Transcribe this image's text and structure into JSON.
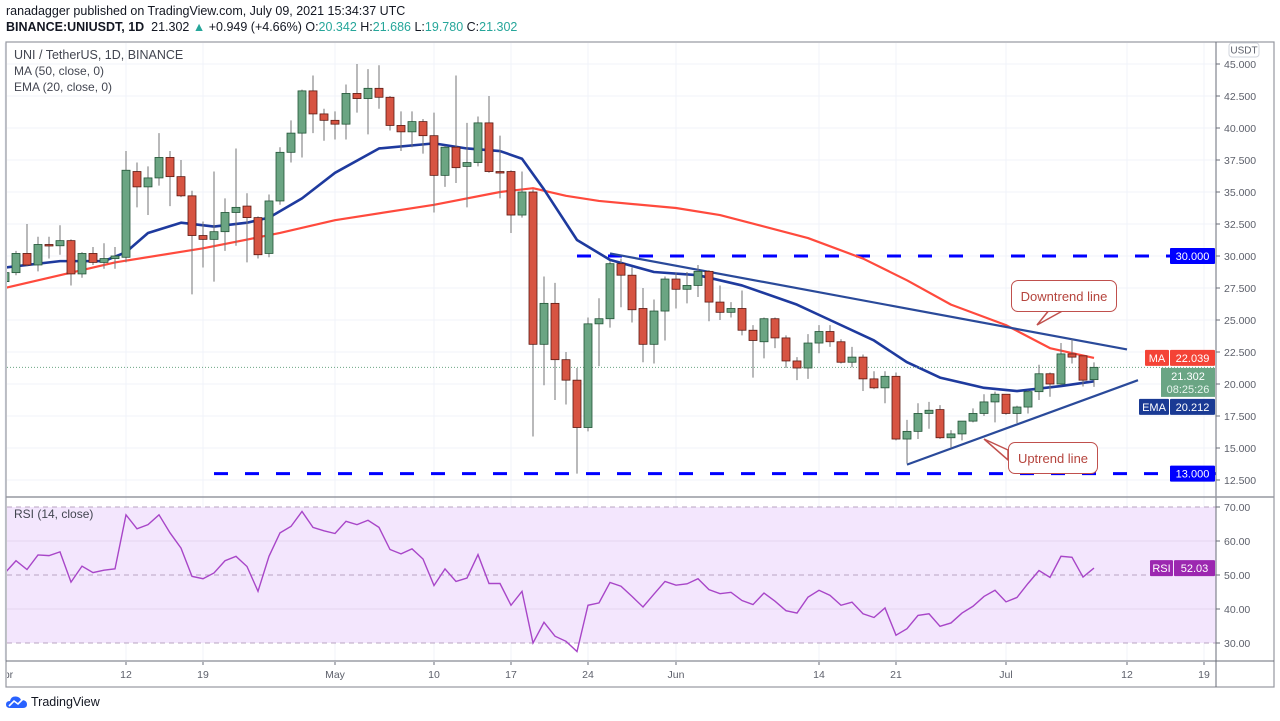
{
  "header": {
    "published_line": "ranadagger published on TradingView.com, July 09, 2021 15:34:37 UTC",
    "symbol": "BINANCE:UNIUSDT, 1D",
    "last": "21.302",
    "change": "+0.949 (+4.66%)",
    "o_label": "O:",
    "o": "20.342",
    "h_label": "H:",
    "h": "21.686",
    "l_label": "L:",
    "l": "19.780",
    "c_label": "C:",
    "c": "21.302"
  },
  "legend": {
    "title": "UNI / TetherUS, 1D, BINANCE",
    "ma": "MA (50, close, 0)",
    "ema": "EMA (20, close, 0)",
    "rsi": "RSI (14, close)"
  },
  "colors": {
    "up": "#6ba583",
    "up_border": "#225437",
    "down": "#d75442",
    "down_border": "#5b1a13",
    "wick": "#737375",
    "ma": "#ff4a3d",
    "ema": "#1e3a9e",
    "trendline": "#2a4a9a",
    "level": "#0000ff",
    "rsi": "#a846c8",
    "rsi_band": "#f3e6fd"
  },
  "price_axis": {
    "currency": "USDT",
    "ticks": [
      "45.000",
      "42.500",
      "40.000",
      "37.500",
      "35.000",
      "32.500",
      "30.000",
      "27.500",
      "25.000",
      "22.500",
      "20.000",
      "17.500",
      "15.000",
      "12.500"
    ],
    "labels": {
      "level_high": "30.000",
      "level_low": "13.000",
      "ma_tag": "MA",
      "ma_value": "22.039",
      "last_value": "21.302",
      "countdown": "08:25:26",
      "ema_tag": "EMA",
      "ema_value": "20.212"
    }
  },
  "rsi_axis": {
    "ticks": [
      "70.00",
      "60.00",
      "50.00",
      "40.00",
      "30.00"
    ],
    "tag": "RSI",
    "value": "52.03"
  },
  "time_axis": {
    "ticks": [
      {
        "label": "Apr",
        "date": "2021-04-01"
      },
      {
        "label": "12",
        "date": "2021-04-12"
      },
      {
        "label": "19",
        "date": "2021-04-19"
      },
      {
        "label": "May",
        "date": "2021-05-01"
      },
      {
        "label": "10",
        "date": "2021-05-10"
      },
      {
        "label": "17",
        "date": "2021-05-17"
      },
      {
        "label": "24",
        "date": "2021-05-24"
      },
      {
        "label": "Jun",
        "date": "2021-06-01"
      },
      {
        "label": "14",
        "date": "2021-06-14"
      },
      {
        "label": "21",
        "date": "2021-06-21"
      },
      {
        "label": "Jul",
        "date": "2021-07-01"
      },
      {
        "label": "12",
        "date": "2021-07-12"
      },
      {
        "label": "19",
        "date": "2021-07-19"
      }
    ]
  },
  "annotations": {
    "downtrend": "Downtrend line",
    "uptrend": "Uptrend line"
  },
  "brand": "TradingView",
  "chart_data": {
    "type": "candlestick",
    "symbol": "UNI / TetherUS",
    "interval": "1D",
    "ylim": [
      12.5,
      45
    ],
    "rsi_ylim": [
      25,
      72
    ],
    "candle_fields": [
      "date",
      "open",
      "high",
      "low",
      "close"
    ],
    "candles": [
      [
        "2021-04-01",
        28.0,
        28.9,
        27.8,
        28.7
      ],
      [
        "2021-04-02",
        28.7,
        30.4,
        28.5,
        30.2
      ],
      [
        "2021-04-03",
        30.2,
        32.5,
        29.2,
        29.3
      ],
      [
        "2021-04-04",
        29.3,
        31.5,
        28.8,
        30.9
      ],
      [
        "2021-04-05",
        30.9,
        31.5,
        29.8,
        30.8
      ],
      [
        "2021-04-06",
        30.8,
        32.4,
        30.1,
        31.2
      ],
      [
        "2021-04-07",
        31.2,
        31.3,
        27.7,
        28.6
      ],
      [
        "2021-04-08",
        28.6,
        30.3,
        28.3,
        30.2
      ],
      [
        "2021-04-09",
        30.2,
        30.7,
        29.3,
        29.5
      ],
      [
        "2021-04-10",
        29.5,
        31.0,
        29.0,
        29.8
      ],
      [
        "2021-04-11",
        29.8,
        30.7,
        29.0,
        30.0
      ],
      [
        "2021-04-12",
        29.9,
        38.2,
        29.5,
        36.7
      ],
      [
        "2021-04-13",
        36.6,
        37.3,
        33.8,
        35.4
      ],
      [
        "2021-04-14",
        35.4,
        37.0,
        33.2,
        36.1
      ],
      [
        "2021-04-15",
        36.1,
        39.6,
        35.5,
        37.7
      ],
      [
        "2021-04-16",
        37.7,
        38.2,
        33.9,
        36.2
      ],
      [
        "2021-04-17",
        36.2,
        37.5,
        34.6,
        34.7
      ],
      [
        "2021-04-18",
        34.7,
        35.1,
        27.0,
        31.6
      ],
      [
        "2021-04-19",
        31.6,
        32.7,
        29.1,
        31.3
      ],
      [
        "2021-04-20",
        31.3,
        36.6,
        28.0,
        31.9
      ],
      [
        "2021-04-21",
        31.9,
        34.5,
        30.4,
        33.4
      ],
      [
        "2021-04-22",
        33.4,
        38.4,
        30.8,
        33.8
      ],
      [
        "2021-04-23",
        33.9,
        34.9,
        29.5,
        33.0
      ],
      [
        "2021-04-24",
        33.0,
        33.1,
        29.8,
        30.1
      ],
      [
        "2021-04-25",
        30.2,
        34.8,
        29.9,
        34.3
      ],
      [
        "2021-04-26",
        34.3,
        38.5,
        34.0,
        38.1
      ],
      [
        "2021-04-27",
        38.1,
        40.6,
        37.3,
        39.6
      ],
      [
        "2021-04-28",
        39.6,
        43.0,
        37.7,
        42.9
      ],
      [
        "2021-04-29",
        42.9,
        44.1,
        39.6,
        41.1
      ],
      [
        "2021-04-30",
        41.1,
        41.5,
        39.0,
        40.6
      ],
      [
        "2021-05-01",
        40.6,
        41.3,
        39.1,
        40.3
      ],
      [
        "2021-05-02",
        40.3,
        43.4,
        39.1,
        42.7
      ],
      [
        "2021-05-03",
        42.7,
        45.0,
        41.2,
        42.3
      ],
      [
        "2021-05-04",
        42.3,
        44.6,
        39.5,
        43.1
      ],
      [
        "2021-05-05",
        43.1,
        44.9,
        41.5,
        42.4
      ],
      [
        "2021-05-06",
        42.4,
        42.5,
        39.8,
        40.2
      ],
      [
        "2021-05-07",
        40.2,
        41.3,
        38.2,
        39.7
      ],
      [
        "2021-05-08",
        39.7,
        41.3,
        38.5,
        40.5
      ],
      [
        "2021-05-09",
        40.5,
        40.7,
        38.0,
        39.4
      ],
      [
        "2021-05-10",
        39.4,
        41.2,
        33.4,
        36.3
      ],
      [
        "2021-05-11",
        36.3,
        38.6,
        35.4,
        38.5
      ],
      [
        "2021-05-12",
        38.5,
        44.1,
        35.7,
        36.9
      ],
      [
        "2021-05-13",
        37.0,
        40.4,
        33.8,
        37.3
      ],
      [
        "2021-05-14",
        37.3,
        40.9,
        37.0,
        40.4
      ],
      [
        "2021-05-15",
        40.4,
        42.5,
        36.5,
        36.6
      ],
      [
        "2021-05-16",
        36.6,
        39.4,
        34.5,
        36.5
      ],
      [
        "2021-05-17",
        36.6,
        36.7,
        31.8,
        33.2
      ],
      [
        "2021-05-18",
        33.2,
        36.6,
        33.0,
        35.0
      ],
      [
        "2021-05-19",
        35.0,
        35.2,
        15.9,
        23.1
      ],
      [
        "2021-05-20",
        23.1,
        28.4,
        19.9,
        26.3
      ],
      [
        "2021-05-21",
        26.3,
        27.9,
        18.75,
        21.9
      ],
      [
        "2021-05-22",
        21.9,
        22.5,
        18.4,
        20.3
      ],
      [
        "2021-05-23",
        20.3,
        21.25,
        13.0,
        16.6
      ],
      [
        "2021-05-24",
        16.6,
        25.2,
        16.3,
        24.7
      ],
      [
        "2021-05-25",
        24.7,
        26.7,
        21.4,
        25.1
      ],
      [
        "2021-05-26",
        25.1,
        29.6,
        24.4,
        29.4
      ],
      [
        "2021-05-27",
        29.4,
        29.8,
        26.0,
        28.5
      ],
      [
        "2021-05-28",
        28.5,
        29.1,
        24.8,
        25.8
      ],
      [
        "2021-05-29",
        25.9,
        27.5,
        21.7,
        23.1
      ],
      [
        "2021-05-30",
        23.1,
        26.6,
        21.6,
        25.7
      ],
      [
        "2021-05-31",
        25.7,
        28.4,
        23.4,
        28.2
      ],
      [
        "2021-06-01",
        28.2,
        28.7,
        25.9,
        27.4
      ],
      [
        "2021-06-02",
        27.4,
        28.75,
        26.3,
        27.7
      ],
      [
        "2021-06-03",
        27.7,
        29.3,
        26.8,
        28.8
      ],
      [
        "2021-06-04",
        28.8,
        28.9,
        24.9,
        26.4
      ],
      [
        "2021-06-05",
        26.4,
        27.7,
        25.0,
        25.6
      ],
      [
        "2021-06-06",
        25.6,
        26.4,
        25.2,
        25.9
      ],
      [
        "2021-06-07",
        25.9,
        27.3,
        23.8,
        24.2
      ],
      [
        "2021-06-08",
        24.2,
        24.6,
        20.5,
        23.4
      ],
      [
        "2021-06-09",
        23.3,
        25.2,
        22.0,
        25.1
      ],
      [
        "2021-06-10",
        25.1,
        25.2,
        22.8,
        23.6
      ],
      [
        "2021-06-11",
        23.6,
        23.8,
        21.25,
        21.8
      ],
      [
        "2021-06-12",
        21.8,
        22.1,
        20.3,
        21.25
      ],
      [
        "2021-06-13",
        21.25,
        23.9,
        20.4,
        23.2
      ],
      [
        "2021-06-14",
        23.2,
        24.6,
        22.4,
        24.1
      ],
      [
        "2021-06-15",
        24.1,
        24.6,
        22.9,
        23.3
      ],
      [
        "2021-06-16",
        23.3,
        23.5,
        21.6,
        21.7
      ],
      [
        "2021-06-17",
        21.7,
        22.9,
        21.3,
        22.1
      ],
      [
        "2021-06-18",
        22.1,
        22.3,
        19.45,
        20.4
      ],
      [
        "2021-06-19",
        20.4,
        21.0,
        19.6,
        19.7
      ],
      [
        "2021-06-20",
        19.7,
        21.0,
        18.5,
        20.6
      ],
      [
        "2021-06-21",
        20.6,
        20.9,
        15.6,
        15.7
      ],
      [
        "2021-06-22",
        15.7,
        17.2,
        13.8,
        16.3
      ],
      [
        "2021-06-23",
        16.3,
        18.5,
        15.7,
        17.7
      ],
      [
        "2021-06-24",
        17.7,
        18.6,
        16.5,
        17.95
      ],
      [
        "2021-06-25",
        18.0,
        18.35,
        15.7,
        15.8
      ],
      [
        "2021-06-26",
        15.8,
        16.4,
        15.0,
        16.1
      ],
      [
        "2021-06-27",
        16.1,
        17.1,
        15.6,
        17.1
      ],
      [
        "2021-06-28",
        17.1,
        18.1,
        17.0,
        17.7
      ],
      [
        "2021-06-29",
        17.7,
        19.2,
        17.5,
        18.6
      ],
      [
        "2021-06-30",
        18.6,
        19.4,
        17.0,
        19.2
      ],
      [
        "2021-07-01",
        19.2,
        19.2,
        17.6,
        17.7
      ],
      [
        "2021-07-02",
        17.7,
        18.3,
        16.95,
        18.2
      ],
      [
        "2021-07-03",
        18.2,
        19.5,
        17.7,
        19.4
      ],
      [
        "2021-07-04",
        19.4,
        21.5,
        18.75,
        20.8
      ],
      [
        "2021-07-05",
        20.8,
        20.9,
        19.0,
        20.0
      ],
      [
        "2021-07-06",
        20.0,
        23.2,
        19.9,
        22.35
      ],
      [
        "2021-07-07",
        22.35,
        23.5,
        21.6,
        22.1
      ],
      [
        "2021-07-08",
        22.2,
        22.2,
        19.8,
        20.3
      ],
      [
        "2021-07-09",
        20.342,
        21.686,
        19.78,
        21.302
      ]
    ],
    "ma50": [
      [
        "2021-04-01",
        27.5
      ],
      [
        "2021-04-11",
        29.5
      ],
      [
        "2021-04-19",
        30.6
      ],
      [
        "2021-04-26",
        31.8
      ],
      [
        "2021-05-01",
        32.8
      ],
      [
        "2021-05-10",
        34.0
      ],
      [
        "2021-05-16",
        35.0
      ],
      [
        "2021-05-19",
        35.3
      ],
      [
        "2021-05-22",
        34.7
      ],
      [
        "2021-05-25",
        34.3
      ],
      [
        "2021-06-01",
        33.75
      ],
      [
        "2021-06-05",
        33.2
      ],
      [
        "2021-06-13",
        31.4
      ],
      [
        "2021-06-18",
        29.8
      ],
      [
        "2021-06-22",
        28.1
      ],
      [
        "2021-06-26",
        26.2
      ],
      [
        "2021-07-01",
        24.6
      ],
      [
        "2021-07-05",
        22.8
      ],
      [
        "2021-07-09",
        22.039
      ]
    ],
    "ema20": [
      [
        "2021-04-01",
        29.1
      ],
      [
        "2021-04-06",
        29.6
      ],
      [
        "2021-04-10",
        29.6
      ],
      [
        "2021-04-12",
        30.3
      ],
      [
        "2021-04-14",
        31.8
      ],
      [
        "2021-04-17",
        32.6
      ],
      [
        "2021-04-20",
        32.3
      ],
      [
        "2021-04-23",
        32.6
      ],
      [
        "2021-04-25",
        33.0
      ],
      [
        "2021-04-28",
        34.5
      ],
      [
        "2021-05-01",
        36.5
      ],
      [
        "2021-05-05",
        38.4
      ],
      [
        "2021-05-10",
        38.8
      ],
      [
        "2021-05-13",
        38.4
      ],
      [
        "2021-05-16",
        38.2
      ],
      [
        "2021-05-18",
        37.6
      ],
      [
        "2021-05-20",
        35.2
      ],
      [
        "2021-05-23",
        31.25
      ],
      [
        "2021-05-26",
        29.7
      ],
      [
        "2021-05-30",
        28.75
      ],
      [
        "2021-06-03",
        28.5
      ],
      [
        "2021-06-07",
        27.7
      ],
      [
        "2021-06-12",
        26.2
      ],
      [
        "2021-06-15",
        25.0
      ],
      [
        "2021-06-19",
        23.4
      ],
      [
        "2021-06-22",
        21.7
      ],
      [
        "2021-06-25",
        20.5
      ],
      [
        "2021-06-29",
        19.7
      ],
      [
        "2021-07-02",
        19.45
      ],
      [
        "2021-07-06",
        19.84
      ],
      [
        "2021-07-09",
        20.212
      ]
    ],
    "horizontal_levels": [
      {
        "price": 30.0,
        "from": "2021-05-23"
      },
      {
        "price": 13.0,
        "from": "2021-04-20"
      }
    ],
    "trendlines": [
      {
        "name": "Downtrend line",
        "from": [
          "2021-05-26",
          30.2
        ],
        "to": [
          "2021-07-12",
          22.7
        ]
      },
      {
        "name": "Uptrend line",
        "from": [
          "2021-06-22",
          13.7
        ],
        "to": [
          "2021-07-13",
          20.3
        ]
      }
    ],
    "rsi14": [
      50.6,
      54.2,
      51.6,
      55.9,
      55.7,
      56.8,
      47.9,
      52.6,
      50.7,
      51.4,
      51.8,
      67.7,
      63.6,
      64.8,
      67.7,
      62.4,
      57.9,
      49.6,
      48.9,
      50.6,
      54.2,
      55.5,
      52.5,
      45.2,
      55.5,
      62.4,
      64.3,
      68.7,
      64.0,
      63.0,
      62.2,
      65.8,
      64.8,
      66.1,
      64.0,
      57.5,
      56.2,
      57.7,
      54.7,
      46.9,
      51.8,
      48.1,
      49.1,
      56.0,
      47.5,
      47.5,
      41.1,
      45.2,
      30.0,
      36.1,
      32.0,
      30.5,
      27.5,
      41.1,
      41.8,
      47.8,
      46.7,
      43.7,
      40.6,
      44.4,
      48.1,
      47.0,
      47.4,
      48.9,
      45.7,
      44.5,
      44.9,
      42.5,
      41.3,
      44.7,
      42.3,
      39.5,
      38.8,
      43.5,
      45.5,
      44.0,
      41.1,
      42.0,
      38.6,
      37.5,
      40.3,
      32.3,
      34.2,
      38.1,
      38.6,
      34.9,
      35.9,
      38.8,
      40.8,
      43.7,
      45.5,
      42.1,
      43.4,
      47.5,
      51.3,
      49.3,
      55.5,
      55.2,
      49.4,
      52.03
    ],
    "rsi_levels": [
      70,
      50,
      30
    ]
  }
}
